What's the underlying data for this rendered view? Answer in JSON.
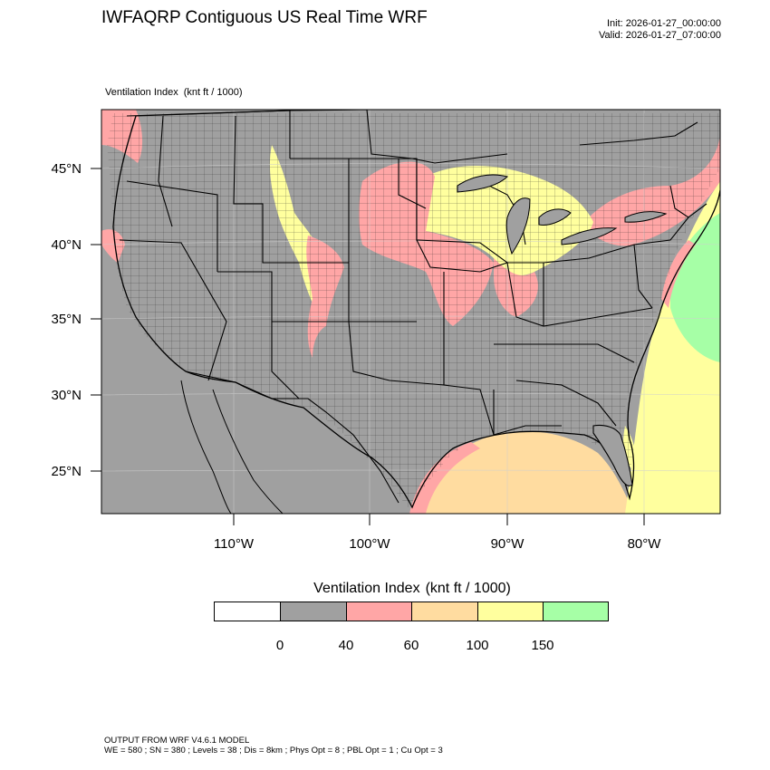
{
  "header": {
    "title": "IWFAQRP Contiguous US Real Time WRF",
    "init": "Init: 2026-01-27_00:00:00",
    "valid": "Valid: 2026-01-27_07:00:00"
  },
  "field": {
    "name": "Ventilation Index",
    "units": "(knt ft / 1000)"
  },
  "axes": {
    "lat_labels": [
      "45°N",
      "40°N",
      "35°N",
      "30°N",
      "25°N"
    ],
    "lon_labels": [
      "110°W",
      "100°W",
      "90°W",
      "80°W"
    ]
  },
  "colorbar": {
    "title": "Ventilation Index",
    "units": "(knt ft / 1000)",
    "colors": [
      "#ffffff",
      "#a0a0a0",
      "#ffa6a6",
      "#ffdca0",
      "#ffff9e",
      "#a6ffa6"
    ],
    "tick_labels": [
      "0",
      "40",
      "60",
      "100",
      "150"
    ]
  },
  "map": {
    "background_color": "#a0a0a0",
    "regions": [
      {
        "name": "northern plains and upper midwest",
        "category": "40-60",
        "color": "#ffa6a6"
      },
      {
        "name": "minnesota wisconsin michigan",
        "category": "100-150",
        "color": "#ffff9e"
      },
      {
        "name": "northern rockies front range",
        "category": "100-150",
        "color": "#ffff9e"
      },
      {
        "name": "gulf of mexico offshore",
        "category": "60-100",
        "color": "#ffdca0"
      },
      {
        "name": "western atlantic offshore",
        "category": "100-150",
        "color": "#ffff9e"
      },
      {
        "name": "far atlantic",
        "category": "150+",
        "color": "#a6ffa6"
      }
    ]
  },
  "footer": {
    "line1": "OUTPUT FROM WRF V4.6.1 MODEL",
    "line2": "WE = 580 ; SN = 380 ; Levels = 38 ; Dis = 8km ; Phys Opt = 8 ; PBL Opt = 1 ; Cu Opt = 3"
  }
}
